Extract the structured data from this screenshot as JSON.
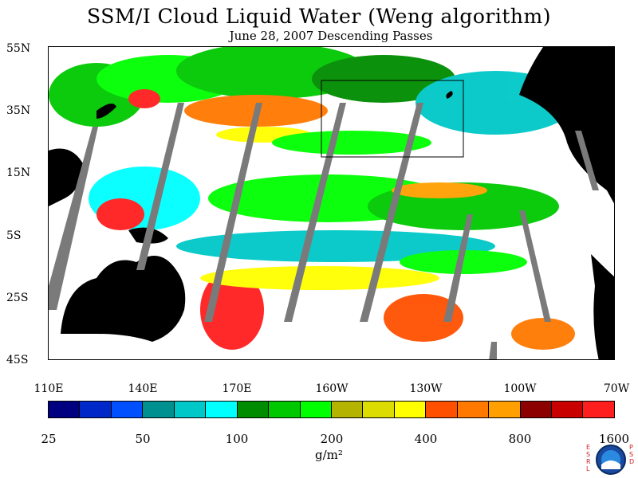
{
  "title": "SSM/I Cloud Liquid Water (Weng algorithm)",
  "subtitle": "June 28, 2007  Descending Passes",
  "lat_labels": [
    "55N",
    "35N",
    "15N",
    "5S",
    "25S",
    "45S"
  ],
  "lon_labels": [
    "110E",
    "140E",
    "170E",
    "160W",
    "130W",
    "100W",
    "70W"
  ],
  "colorbar": {
    "colors": [
      "#000080",
      "#0028c8",
      "#0050ff",
      "#009090",
      "#00c8c8",
      "#00ffff",
      "#008c00",
      "#00c800",
      "#00ff00",
      "#b4b400",
      "#dcdc00",
      "#ffff00",
      "#ff5000",
      "#ff7800",
      "#ffa000",
      "#8c0000",
      "#c80000",
      "#ff1e1e"
    ],
    "labels": [
      "25",
      "50",
      "100",
      "200",
      "400",
      "800",
      "1600"
    ],
    "units": "g/m²"
  },
  "logo": {
    "left_letters": "ESRL",
    "right_letters": "PSD",
    "center_text": "NOAA",
    "colors": {
      "ring": "#1a4aa0",
      "inner": "#2a8ae0"
    }
  },
  "map_colors": {
    "land": "#000000",
    "gap": "#7a7a7a",
    "ocean_clear": "#ffffff",
    "highlight_box": "#000000"
  }
}
